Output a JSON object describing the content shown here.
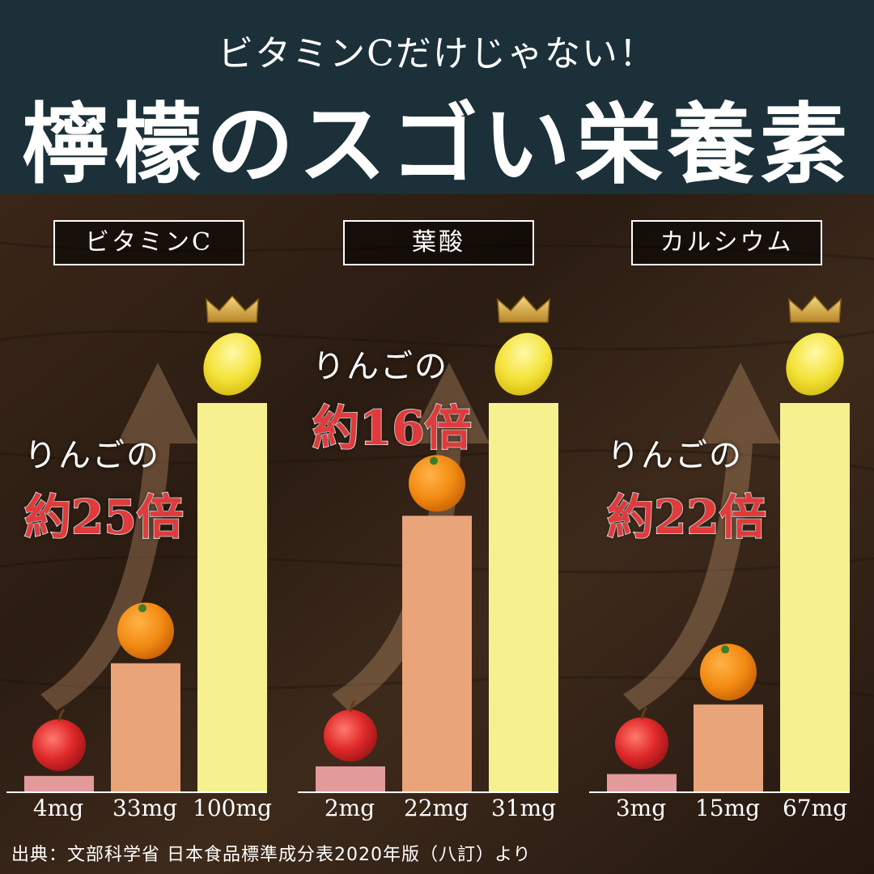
{
  "header": {
    "subtitle": "ビタミンCだけじゃない！",
    "title": "檸檬のスゴい栄養素"
  },
  "colors": {
    "header_bg": "#1b3038",
    "apple_bar": "#e39a9a",
    "orange_bar": "#e9a47a",
    "lemon_bar": "#f6f08f",
    "callout_red": "#e23a3a"
  },
  "chart_data": [
    {
      "type": "bar",
      "title": "ビタミンC",
      "categories": [
        "りんご",
        "みかん",
        "レモン"
      ],
      "values": [
        4,
        33,
        100
      ],
      "unit": "mg",
      "value_labels": [
        "4mg",
        "33mg",
        "100mg"
      ],
      "callout": {
        "line1": "りんごの",
        "line2": "約25倍"
      }
    },
    {
      "type": "bar",
      "title": "葉酸",
      "categories": [
        "りんご",
        "みかん",
        "レモン"
      ],
      "values": [
        2,
        22,
        31
      ],
      "unit": "mg",
      "value_labels": [
        "2mg",
        "22mg",
        "31mg"
      ],
      "callout": {
        "line1": "りんごの",
        "line2": "約16倍"
      }
    },
    {
      "type": "bar",
      "title": "カルシウム",
      "categories": [
        "りんご",
        "みかん",
        "レモン"
      ],
      "values": [
        3,
        15,
        67
      ],
      "unit": "mg",
      "value_labels": [
        "3mg",
        "15mg",
        "67mg"
      ],
      "callout": {
        "line1": "りんごの",
        "line2": "約22倍"
      }
    }
  ],
  "icons": [
    "apple-icon",
    "orange-icon",
    "lemon-icon",
    "crown-icon",
    "arrow-icon"
  ],
  "footer": {
    "source": "出典：文部科学省 日本食品標準成分表2020年版（八訂）より"
  }
}
